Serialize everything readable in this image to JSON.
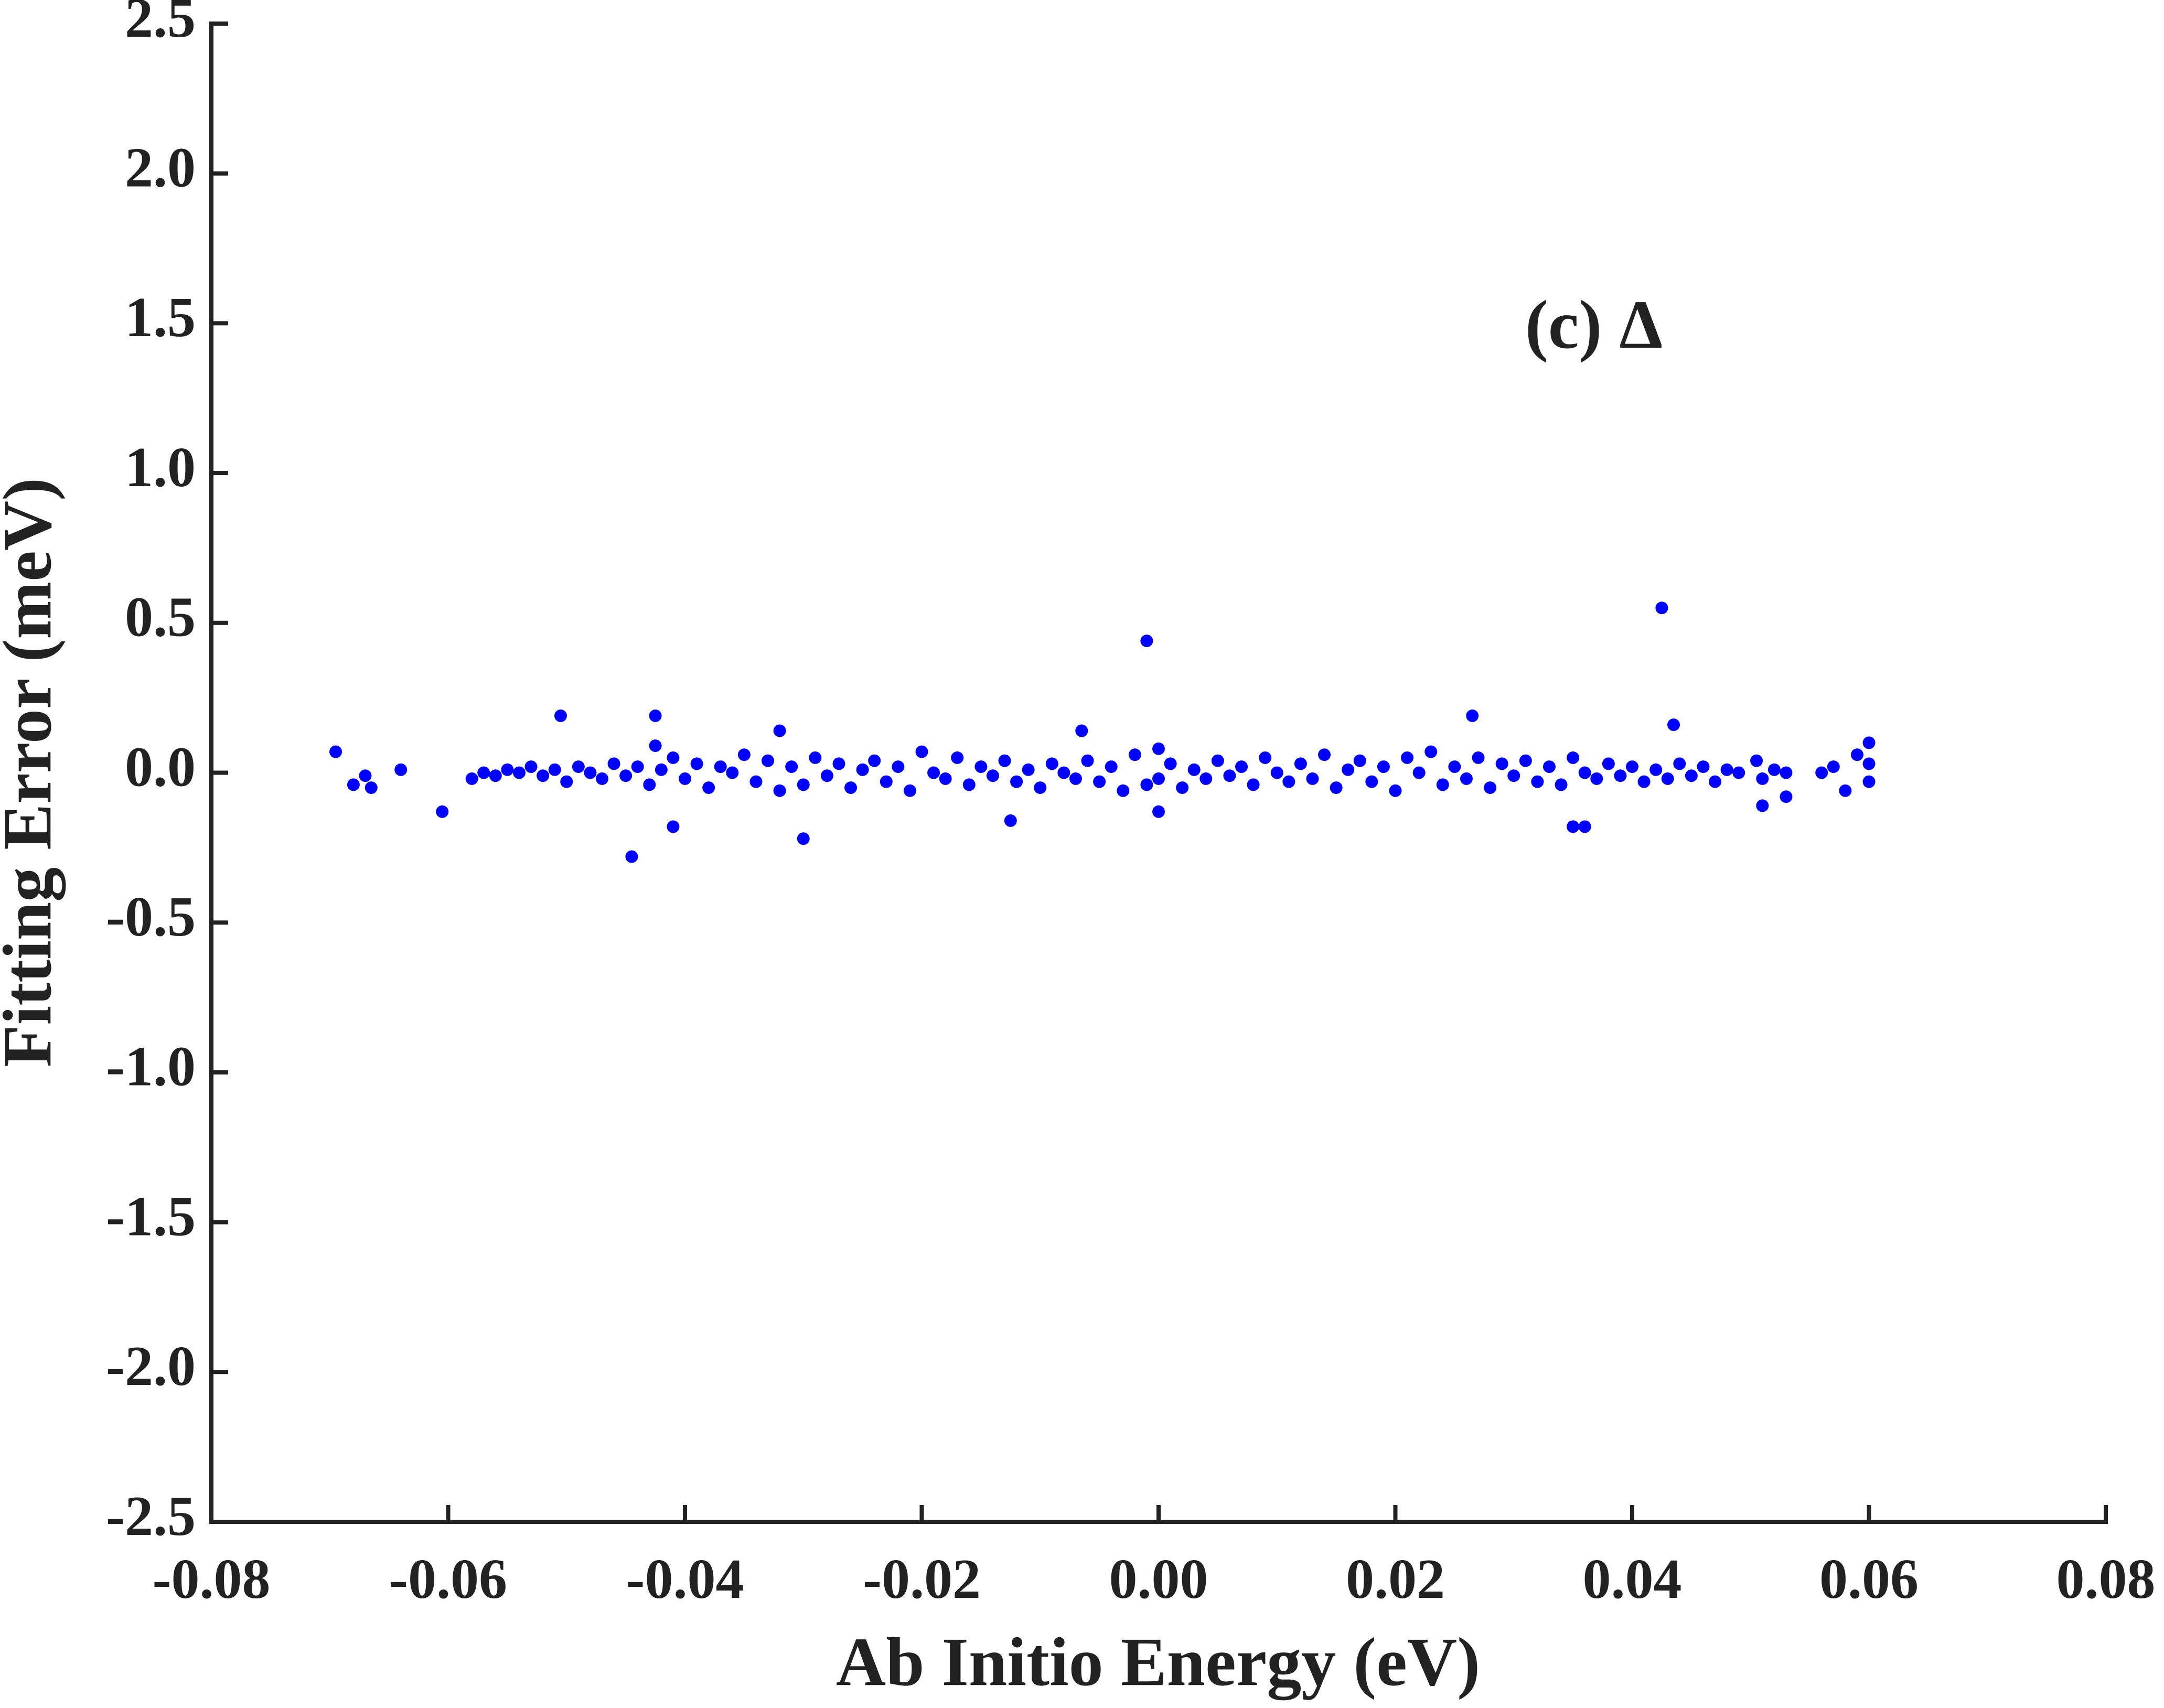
{
  "chart_data": {
    "type": "scatter",
    "title": "(c) Δ",
    "x_label": "Ab Initio Energy (eV)",
    "y_label": "Fitting Error (meV)",
    "color": "#0000ff",
    "xlim": [
      -0.08,
      0.08
    ],
    "ylim": [
      -2.5,
      2.5
    ],
    "xticks": [
      {
        "value": -0.08,
        "label": "-0.08"
      },
      {
        "value": -0.06,
        "label": "-0.06"
      },
      {
        "value": -0.04,
        "label": "-0.04"
      },
      {
        "value": -0.02,
        "label": "-0.02"
      },
      {
        "value": 0,
        "label": "0.00"
      },
      {
        "value": 0.02,
        "label": "0.02"
      },
      {
        "value": 0.04,
        "label": "0.04"
      },
      {
        "value": 0.06,
        "label": "0.06"
      },
      {
        "value": 0.08,
        "label": "0.08"
      }
    ],
    "yticks": [
      {
        "value": 2.5,
        "label": "2.5"
      },
      {
        "value": 2,
        "label": "2.0"
      },
      {
        "value": 1.5,
        "label": "1.5"
      },
      {
        "value": 1,
        "label": "1.0"
      },
      {
        "value": 0.5,
        "label": "0.5"
      },
      {
        "value": 0,
        "label": "0.0"
      },
      {
        "value": -0.5,
        "label": "-0.5"
      },
      {
        "value": -1,
        "label": "-1.0"
      },
      {
        "value": -1.5,
        "label": "-1.5"
      },
      {
        "value": -2,
        "label": "-2.0"
      },
      {
        "value": -2.5,
        "label": "-2.5"
      }
    ],
    "x": [
      0.0425,
      -0.001,
      -0.0445,
      -0.0505,
      -0.0425,
      0.0265,
      0.0435,
      -0.0695,
      -0.068,
      -0.067,
      -0.0665,
      -0.064,
      -0.0605,
      -0.041,
      -0.03,
      -0.0125,
      0.0,
      0.035,
      0.036,
      0.06,
      0.06,
      0.06,
      0.059,
      0.057,
      0.058,
      0.056,
      0.053,
      0.051,
      0.0505,
      -0.0065,
      -0.032,
      -0.0425,
      -0.058,
      -0.057,
      -0.056,
      -0.055,
      -0.054,
      -0.053,
      -0.052,
      -0.051,
      -0.05,
      -0.049,
      -0.048,
      -0.047,
      -0.046,
      -0.045,
      -0.044,
      -0.043,
      -0.042,
      -0.041,
      -0.04,
      -0.039,
      -0.038,
      -0.037,
      -0.036,
      -0.035,
      -0.034,
      -0.033,
      -0.032,
      -0.031,
      -0.03,
      -0.029,
      -0.028,
      -0.027,
      -0.026,
      -0.025,
      -0.024,
      -0.023,
      -0.022,
      -0.021,
      -0.02,
      -0.019,
      -0.018,
      -0.017,
      -0.016,
      -0.015,
      -0.014,
      -0.013,
      -0.012,
      -0.011,
      -0.01,
      -0.009,
      -0.008,
      -0.007,
      -0.006,
      -0.005,
      -0.004,
      -0.003,
      -0.002,
      -0.001,
      0.0,
      0.0,
      0.001,
      0.002,
      0.003,
      0.004,
      0.005,
      0.006,
      0.007,
      0.008,
      0.009,
      0.01,
      0.011,
      0.012,
      0.013,
      0.014,
      0.015,
      0.016,
      0.017,
      0.018,
      0.019,
      0.02,
      0.021,
      0.022,
      0.023,
      0.024,
      0.025,
      0.026,
      0.027,
      0.028,
      0.029,
      0.03,
      0.031,
      0.032,
      0.033,
      0.034,
      0.035,
      0.036,
      0.037,
      0.038,
      0.039,
      0.04,
      0.041,
      0.042,
      0.043,
      0.044,
      0.045,
      0.046,
      0.047,
      0.048,
      0.049,
      0.051,
      0.052,
      0.053
    ],
    "y": [
      0.55,
      0.44,
      -0.28,
      0.19,
      0.19,
      0.19,
      0.16,
      0.07,
      -0.04,
      -0.01,
      -0.05,
      0.01,
      -0.13,
      -0.18,
      -0.22,
      -0.16,
      -0.13,
      -0.18,
      -0.18,
      0.1,
      0.03,
      -0.03,
      0.06,
      0.02,
      -0.06,
      0.0,
      -0.08,
      -0.11,
      0.04,
      0.14,
      0.14,
      0.09,
      -0.02,
      0.0,
      -0.01,
      0.01,
      0.0,
      0.02,
      -0.01,
      0.01,
      -0.03,
      0.02,
      0.0,
      -0.02,
      0.03,
      -0.01,
      0.02,
      -0.04,
      0.01,
      0.05,
      -0.02,
      0.03,
      -0.05,
      0.02,
      0.0,
      0.06,
      -0.03,
      0.04,
      -0.06,
      0.02,
      -0.04,
      0.05,
      -0.01,
      0.03,
      -0.05,
      0.01,
      0.04,
      -0.03,
      0.02,
      -0.06,
      0.07,
      0.0,
      -0.02,
      0.05,
      -0.04,
      0.02,
      -0.01,
      0.04,
      -0.03,
      0.01,
      -0.05,
      0.03,
      0.0,
      -0.02,
      0.04,
      -0.03,
      0.02,
      -0.06,
      0.06,
      -0.04,
      0.08,
      -0.02,
      0.03,
      -0.05,
      0.01,
      -0.02,
      0.04,
      -0.01,
      0.02,
      -0.04,
      0.05,
      0.0,
      -0.03,
      0.03,
      -0.02,
      0.06,
      -0.05,
      0.01,
      0.04,
      -0.03,
      0.02,
      -0.06,
      0.05,
      0.0,
      0.07,
      -0.04,
      0.02,
      -0.02,
      0.05,
      -0.05,
      0.03,
      -0.01,
      0.04,
      -0.03,
      0.02,
      -0.04,
      0.05,
      0.0,
      -0.02,
      0.03,
      -0.01,
      0.02,
      -0.03,
      0.01,
      -0.02,
      0.03,
      -0.01,
      0.02,
      -0.03,
      0.01,
      0.0,
      -0.02,
      0.01,
      0.0
    ]
  }
}
